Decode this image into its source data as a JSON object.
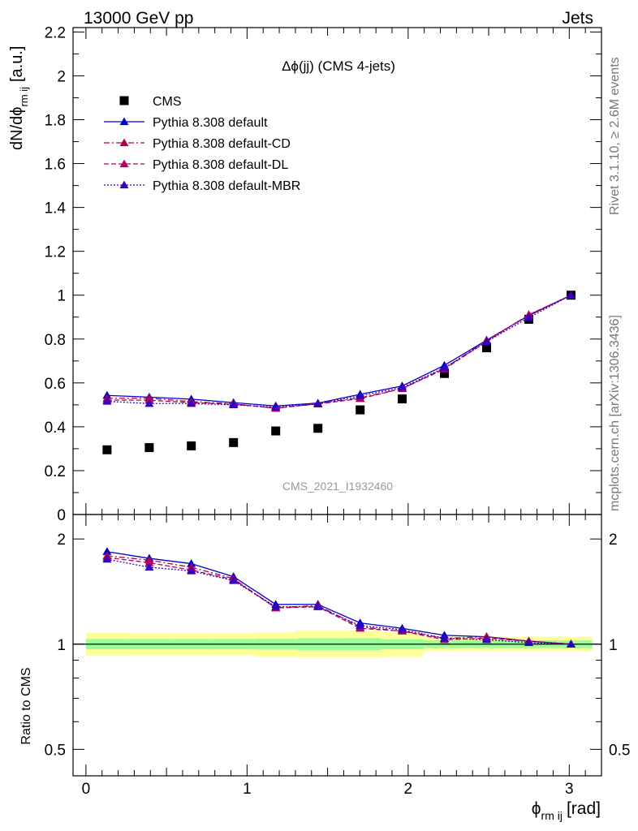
{
  "header": {
    "left": "13000 GeV pp",
    "right": "Jets"
  },
  "side_labels": {
    "rivet": "Rivet 3.1.10, ≥ 2.6M events",
    "mcplots": "mcplots.cern.ch [arXiv:1306.3436]"
  },
  "watermark": "CMS_2021_I1932460",
  "colors": {
    "cms": "#000000",
    "default": "#0000cc",
    "cd": "#b0004a",
    "dl": "#b0006a",
    "mbr": "#3300bb",
    "band_inner": "#99ff99",
    "band_outer": "#ffff99",
    "watermark": "#999999",
    "side": "#777777"
  },
  "chart_data": [
    {
      "type": "scatter",
      "title": "Δϕ(jj) (CMS 4-jets)",
      "ylabel_main": "dN/dϕ",
      "ylabel_sub": "rm ij",
      "ylabel_unit": "[a.u.]",
      "xlim": [
        -0.08,
        3.2
      ],
      "ylim": [
        0,
        2.22
      ],
      "yticks": [
        "0",
        "0.2",
        "0.4",
        "0.6",
        "0.8",
        "1",
        "1.2",
        "1.4",
        "1.6",
        "1.8",
        "2",
        "2.2"
      ],
      "x": [
        0.131,
        0.393,
        0.654,
        0.916,
        1.178,
        1.44,
        1.702,
        1.963,
        2.225,
        2.487,
        2.749,
        3.011
      ],
      "series": [
        {
          "name": "CMS",
          "key": "cms",
          "marker": "square",
          "dash": "none",
          "values": [
            0.295,
            0.305,
            0.313,
            0.328,
            0.381,
            0.393,
            0.477,
            0.527,
            0.643,
            0.76,
            0.89,
            1.0
          ]
        },
        {
          "name": "Pythia 8.308 default",
          "key": "default",
          "marker": "triangle",
          "dash": "solid",
          "values": [
            0.543,
            0.535,
            0.526,
            0.51,
            0.495,
            0.508,
            0.548,
            0.586,
            0.68,
            0.795,
            0.907,
            1.0
          ]
        },
        {
          "name": "Pythia 8.308 default-CD",
          "key": "cd",
          "marker": "triangle",
          "dash": "dashdot",
          "values": [
            0.53,
            0.53,
            0.515,
            0.505,
            0.484,
            0.506,
            0.532,
            0.574,
            0.666,
            0.793,
            0.91,
            1.0
          ]
        },
        {
          "name": "Pythia 8.308 default-DL",
          "key": "dl",
          "marker": "triangle",
          "dash": "dashed",
          "values": [
            0.522,
            0.521,
            0.51,
            0.503,
            0.485,
            0.504,
            0.528,
            0.574,
            0.663,
            0.789,
            0.911,
            1.0
          ]
        },
        {
          "name": "Pythia 8.308 default-MBR",
          "key": "mbr",
          "marker": "triangle",
          "dash": "dotted",
          "values": [
            0.516,
            0.506,
            0.506,
            0.5,
            0.49,
            0.504,
            0.541,
            0.579,
            0.669,
            0.788,
            0.898,
            1.0
          ]
        }
      ]
    },
    {
      "type": "line",
      "ylabel": "Ratio to CMS",
      "xlabel_main": "ϕ",
      "xlabel_sub": "rm ij",
      "xlabel_unit": "[rad]",
      "xlim": [
        -0.08,
        3.2
      ],
      "ylim": [
        0.42,
        2.35
      ],
      "ylog": true,
      "yticks": [
        "0.5",
        "1",
        "2"
      ],
      "xticks": [
        "0",
        "1",
        "2",
        "3"
      ],
      "x": [
        0.131,
        0.393,
        0.654,
        0.916,
        1.178,
        1.44,
        1.702,
        1.963,
        2.225,
        2.487,
        2.749,
        3.011
      ],
      "bin_edges": [
        0.0,
        0.262,
        0.524,
        0.785,
        1.047,
        1.309,
        1.571,
        1.833,
        2.094,
        2.356,
        2.618,
        2.88,
        3.142
      ],
      "band_inner": {
        "lo": [
          0.967,
          0.967,
          0.967,
          0.967,
          0.965,
          0.962,
          0.962,
          0.968,
          0.975,
          0.975,
          0.975,
          0.975
        ],
        "hi": [
          1.034,
          1.034,
          1.034,
          1.034,
          1.036,
          1.04,
          1.04,
          1.033,
          1.026,
          1.026,
          1.026,
          1.026
        ]
      },
      "band_outer": {
        "lo": [
          0.927,
          0.93,
          0.93,
          0.93,
          0.922,
          0.915,
          0.915,
          0.922,
          0.955,
          0.955,
          0.955,
          0.955
        ],
        "hi": [
          1.078,
          1.075,
          1.075,
          1.075,
          1.083,
          1.095,
          1.095,
          1.083,
          1.05,
          1.05,
          1.05,
          1.05
        ]
      },
      "series": [
        {
          "name": "Pythia 8.308 default",
          "key": "default",
          "marker": "triangle",
          "dash": "solid",
          "values": [
            1.84,
            1.76,
            1.7,
            1.56,
            1.3,
            1.3,
            1.15,
            1.11,
            1.06,
            1.05,
            1.02,
            1.0
          ]
        },
        {
          "name": "Pythia 8.308 default-CD",
          "key": "cd",
          "marker": "triangle",
          "dash": "dashdot",
          "values": [
            1.79,
            1.74,
            1.66,
            1.54,
            1.27,
            1.29,
            1.12,
            1.09,
            1.04,
            1.05,
            1.02,
            1.0
          ]
        },
        {
          "name": "Pythia 8.308 default-DL",
          "key": "dl",
          "marker": "triangle",
          "dash": "dashed",
          "values": [
            1.77,
            1.71,
            1.63,
            1.53,
            1.27,
            1.28,
            1.11,
            1.09,
            1.03,
            1.04,
            1.02,
            1.0
          ]
        },
        {
          "name": "Pythia 8.308 default-MBR",
          "key": "mbr",
          "marker": "triangle",
          "dash": "dotted",
          "values": [
            1.75,
            1.66,
            1.62,
            1.52,
            1.28,
            1.28,
            1.13,
            1.1,
            1.04,
            1.03,
            1.01,
            1.0
          ]
        }
      ]
    }
  ]
}
